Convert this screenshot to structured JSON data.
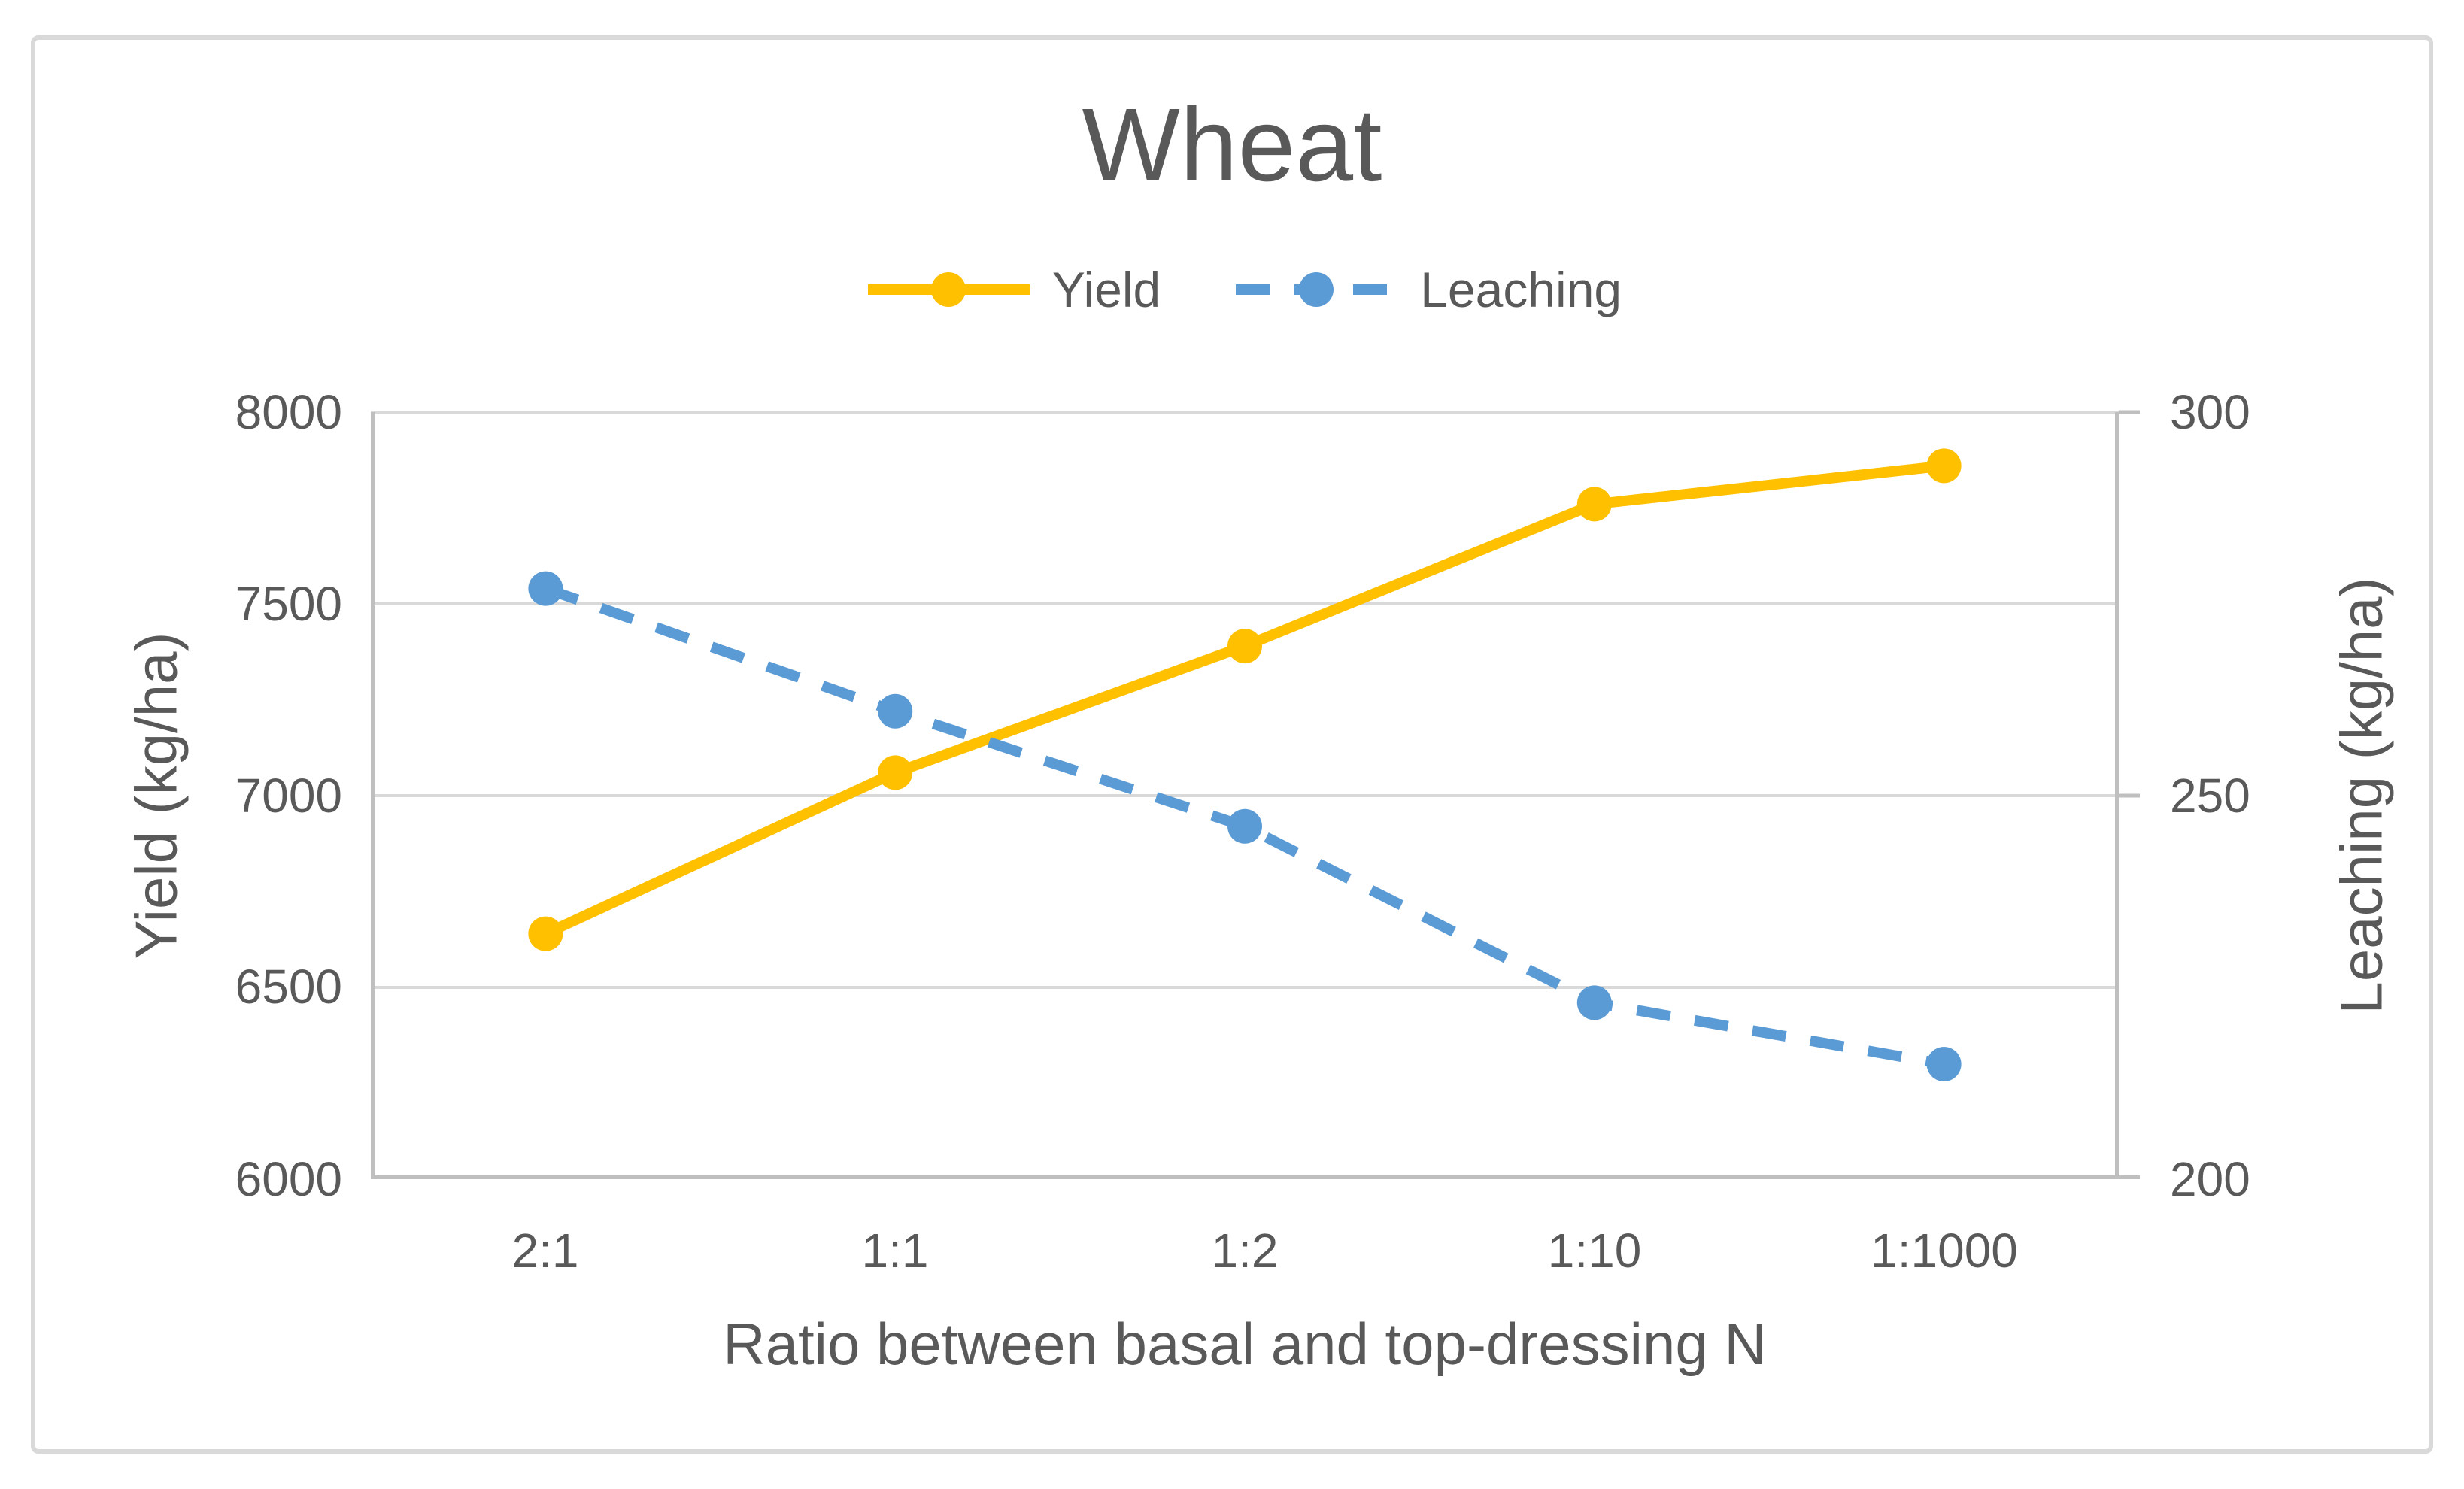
{
  "chart_data": {
    "type": "line",
    "title": "Wheat",
    "categories": [
      "2:1",
      "1:1",
      "1:2",
      "1:10",
      "1:1000"
    ],
    "series": [
      {
        "name": "Yield",
        "axis": "left",
        "style": "solid",
        "color": "#FFC000",
        "values": [
          6640,
          7060,
          7390,
          7760,
          7860
        ]
      },
      {
        "name": "Leaching",
        "axis": "right",
        "style": "dashed",
        "color": "#5B9BD5",
        "values": [
          277,
          261,
          246,
          223,
          215
        ]
      }
    ],
    "xlabel": "Ratio between basal and top-dressing N",
    "ylabel_left": "Yield (kg/ha)",
    "ylabel_right": "Leaching (kg/ha)",
    "ylim_left": [
      6000,
      8000
    ],
    "ylim_right": [
      200,
      300
    ],
    "yticks_left": [
      "8000",
      "7500",
      "7000",
      "6500",
      "6000"
    ],
    "yticks_right": [
      "300",
      "250",
      "200"
    ],
    "grid": true,
    "legend_position": "top-center"
  },
  "colors": {
    "text": "#595959",
    "gridline": "#D9D9D9",
    "axis_line": "#BFBFBF",
    "border": "#D9D9D9",
    "background": "#FFFFFF",
    "yield_series": "#FFC000",
    "leaching_series": "#5B9BD5"
  }
}
